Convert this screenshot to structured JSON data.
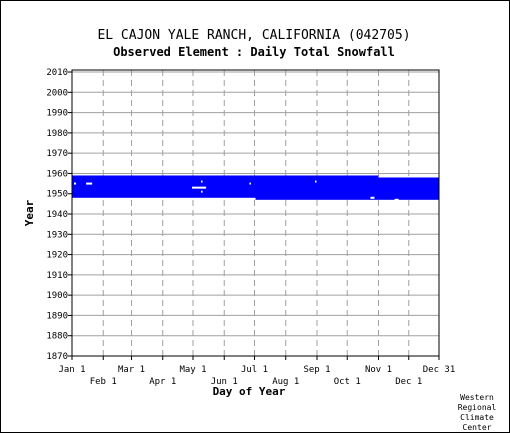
{
  "chart_data": {
    "type": "heatmap",
    "title": "EL CAJON YALE RANCH, CALIFORNIA   (042705)",
    "subtitle": "Observed Element : Daily Total Snowfall",
    "xlabel": "Day of Year",
    "ylabel": "Year",
    "xlim": [
      1,
      365
    ],
    "ylim": [
      1870,
      2011
    ],
    "yticks": [
      1870,
      1880,
      1890,
      1900,
      1910,
      1920,
      1930,
      1940,
      1950,
      1960,
      1970,
      1980,
      1990,
      2000,
      2010
    ],
    "xticks_upper": [
      {
        "label": "Jan 1",
        "day": 1
      },
      {
        "label": "Mar 1",
        "day": 60
      },
      {
        "label": "May 1",
        "day": 121
      },
      {
        "label": "Jul 1",
        "day": 182
      },
      {
        "label": "Sep 1",
        "day": 244
      },
      {
        "label": "Nov 1",
        "day": 305
      },
      {
        "label": "Dec 31",
        "day": 365
      }
    ],
    "xticks_lower": [
      {
        "label": "Feb 1",
        "day": 32
      },
      {
        "label": "Apr 1",
        "day": 91
      },
      {
        "label": "Jun 1",
        "day": 152
      },
      {
        "label": "Aug 1",
        "day": 213
      },
      {
        "label": "Oct 1",
        "day": 274
      },
      {
        "label": "Dec 1",
        "day": 335
      }
    ],
    "grid": true,
    "data_color": "#0000ff",
    "coverage": [
      {
        "day_start": 1,
        "day_end": 183,
        "year_start": 1948,
        "year_end": 1959
      },
      {
        "day_start": 183,
        "day_end": 305,
        "year_start": 1947,
        "year_end": 1959
      },
      {
        "day_start": 305,
        "day_end": 365,
        "year_start": 1947,
        "year_end": 1958
      }
    ],
    "gaps": [
      {
        "day_start": 3,
        "day_end": 5,
        "year": 1955
      },
      {
        "day_start": 15,
        "day_end": 21,
        "year": 1955
      },
      {
        "day_start": 120,
        "day_end": 134,
        "year": 1953
      },
      {
        "day_start": 129,
        "day_end": 130,
        "year": 1956
      },
      {
        "day_start": 129,
        "day_end": 130,
        "year": 1951
      },
      {
        "day_start": 177,
        "day_end": 178,
        "year": 1955
      },
      {
        "day_start": 242,
        "day_end": 243,
        "year": 1956
      },
      {
        "day_start": 297,
        "day_end": 301,
        "year": 1948
      },
      {
        "day_start": 321,
        "day_end": 325,
        "year": 1947
      }
    ]
  },
  "credit": [
    "Western",
    "Regional",
    "Climate",
    "Center"
  ]
}
